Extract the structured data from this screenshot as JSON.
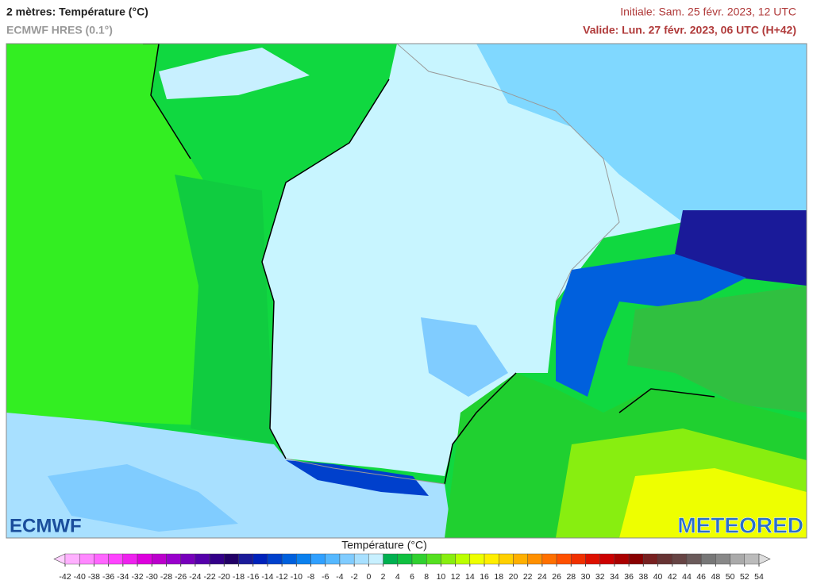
{
  "header": {
    "title": "2 mètres: Température (°C)",
    "subtitle": "ECMWF HRES (0.1°)",
    "initial": "Initiale: Sam. 25 févr. 2023, 12 UTC",
    "valid": "Valide: Lun. 27 févr. 2023, 06 UTC (H+42)"
  },
  "logos": {
    "left": "ECMWF",
    "right": "METEORED"
  },
  "legend": {
    "title": "Température (°C)",
    "ticks": [
      -42,
      -40,
      -38,
      -36,
      -34,
      -32,
      -30,
      -28,
      -26,
      -24,
      -22,
      -20,
      -18,
      -16,
      -14,
      -12,
      -10,
      -8,
      -6,
      -4,
      -2,
      0,
      2,
      4,
      6,
      8,
      10,
      12,
      14,
      16,
      18,
      20,
      22,
      24,
      26,
      28,
      30,
      32,
      34,
      36,
      38,
      40,
      42,
      44,
      46,
      48,
      50,
      52,
      54
    ],
    "colors": [
      "#ffd0ff",
      "#ffb0ff",
      "#ff88ff",
      "#ff66ff",
      "#ff44ff",
      "#ee22ee",
      "#dd00dd",
      "#bb00cc",
      "#9900cc",
      "#7700bb",
      "#5500aa",
      "#330088",
      "#220066",
      "#1a1a99",
      "#0022bb",
      "#0040cc",
      "#0060dd",
      "#0a80ee",
      "#30a0ff",
      "#55b8ff",
      "#80ccff",
      "#a8e0ff",
      "#c8f0ff",
      "#00b050",
      "#10c040",
      "#30d030",
      "#55e020",
      "#88ee10",
      "#bbff00",
      "#eeff00",
      "#ffee00",
      "#ffd000",
      "#ffb000",
      "#ff9000",
      "#ff7000",
      "#ff5000",
      "#f03000",
      "#dd1000",
      "#cc0000",
      "#aa0000",
      "#880000",
      "#772020",
      "#663333",
      "#664444",
      "#6a5a5a",
      "#777777",
      "#888888",
      "#aaaaaa",
      "#bbbbbb",
      "#dddddd"
    ]
  }
}
